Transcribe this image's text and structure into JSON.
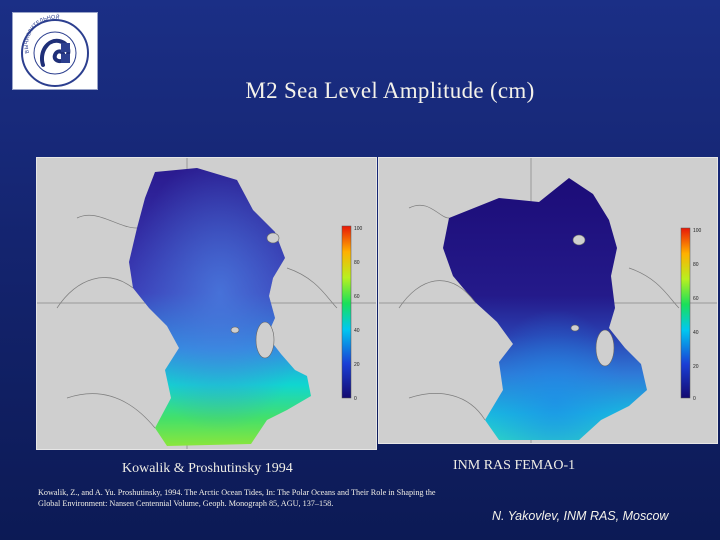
{
  "logo": {
    "icon": "institute-emblem-icon",
    "text_lines": [
      "РАН ИНСТИТУТ",
      "ВЫЧИСЛИТЕЛЬНОЙ",
      "МАТЕМАТИКИ"
    ]
  },
  "title": "M2 Sea Level Amplitude (cm)",
  "maps": {
    "left": {
      "caption": "Kowalik & Proshutinsky 1994",
      "colorbar_ticks": [
        "100",
        "80",
        "60",
        "40",
        "20",
        "0"
      ]
    },
    "right": {
      "caption": "INM RAS FEMAO-1",
      "colorbar_ticks": [
        "100",
        "80",
        "60",
        "40",
        "20",
        "0"
      ]
    }
  },
  "reference": "Kowalik, Z., and A. Yu. Proshutinsky, 1994. The Arctic Ocean Tides, In: The Polar Oceans and Their Role in Shaping the Global Environment: Nansen Centennial Volume, Geoph. Monograph 85, AGU, 137–158.",
  "author": "N. Yakovlev, INM RAS, Moscow",
  "colors": {
    "background": "#1b2f86",
    "map_frame": "#cfcfcf",
    "text": "#f4f2ea"
  }
}
